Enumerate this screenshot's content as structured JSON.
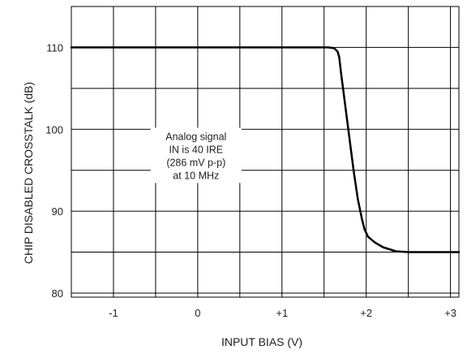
{
  "chart_data": {
    "type": "line",
    "title": "",
    "xlabel": "INPUT BIAS  (V)",
    "ylabel": "CHIP DISABLED CROSSTALK (dB)",
    "xlim": [
      -1.5,
      3.1
    ],
    "ylim": [
      79.5,
      115
    ],
    "x_ticks": [
      -1,
      0,
      1,
      2,
      3
    ],
    "x_tick_labels": [
      "-1",
      "0",
      "+1",
      "+2",
      "+3"
    ],
    "y_ticks": [
      80,
      90,
      100,
      110
    ],
    "y_tick_labels": [
      "80",
      "90",
      "100",
      "110"
    ],
    "grid_x": [
      -1.5,
      -1,
      -0.5,
      0,
      0.5,
      1,
      1.5,
      2,
      2.5,
      3
    ],
    "grid_y": [
      80,
      85,
      90,
      95,
      100,
      105,
      110,
      115
    ],
    "grid": true,
    "line_color": "#000000",
    "annotation": [
      "Analog signal",
      "IN is 40 IRE",
      "(286 mV p-p)",
      "at 10 MHz"
    ],
    "annotation_anchor": {
      "x": -0.02,
      "y": 98.7
    },
    "series": [
      {
        "name": "",
        "x": [
          -1.5,
          1.4,
          1.55,
          1.62,
          1.66,
          1.68,
          1.7,
          1.75,
          1.8,
          1.85,
          1.9,
          1.95,
          1.98,
          2.02,
          2.1,
          2.2,
          2.35,
          2.5,
          3.1
        ],
        "y": [
          110,
          110,
          110,
          109.9,
          109.5,
          108.8,
          107,
          103,
          99,
          95,
          91.5,
          89,
          87.8,
          86.9,
          86.2,
          85.6,
          85.1,
          85,
          85
        ]
      }
    ]
  }
}
